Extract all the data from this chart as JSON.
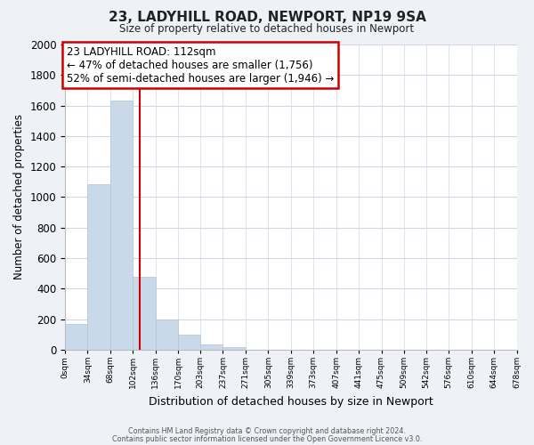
{
  "title": "23, LADYHILL ROAD, NEWPORT, NP19 9SA",
  "subtitle": "Size of property relative to detached houses in Newport",
  "xlabel": "Distribution of detached houses by size in Newport",
  "ylabel": "Number of detached properties",
  "bar_color": "#c9d9ea",
  "bar_edge_color": "#b0c4d8",
  "annotation_box_color": "#ffffff",
  "annotation_border_color": "#cc0000",
  "vline_color": "#cc0000",
  "annotation_line1": "23 LADYHILL ROAD: 112sqm",
  "annotation_line2": "← 47% of detached houses are smaller (1,756)",
  "annotation_line3": "52% of semi-detached houses are larger (1,946) →",
  "vline_x": 112,
  "bin_edges": [
    0,
    34,
    68,
    102,
    136,
    170,
    203,
    237,
    271,
    305,
    339,
    373,
    407,
    441,
    475,
    509,
    542,
    576,
    610,
    644,
    678
  ],
  "bar_heights": [
    170,
    1085,
    1635,
    480,
    200,
    100,
    35,
    15,
    0,
    0,
    0,
    0,
    0,
    0,
    0,
    0,
    0,
    0,
    0,
    0
  ],
  "ylim": [
    0,
    2000
  ],
  "yticks": [
    0,
    200,
    400,
    600,
    800,
    1000,
    1200,
    1400,
    1600,
    1800,
    2000
  ],
  "tick_labels": [
    "0sqm",
    "34sqm",
    "68sqm",
    "102sqm",
    "136sqm",
    "170sqm",
    "203sqm",
    "237sqm",
    "271sqm",
    "305sqm",
    "339sqm",
    "373sqm",
    "407sqm",
    "441sqm",
    "475sqm",
    "509sqm",
    "542sqm",
    "576sqm",
    "610sqm",
    "644sqm",
    "678sqm"
  ],
  "footer1": "Contains HM Land Registry data © Crown copyright and database right 2024.",
  "footer2": "Contains public sector information licensed under the Open Government Licence v3.0.",
  "background_color": "#eef2f7",
  "plot_bg_color": "#ffffff",
  "grid_color": "#ccd8e8"
}
